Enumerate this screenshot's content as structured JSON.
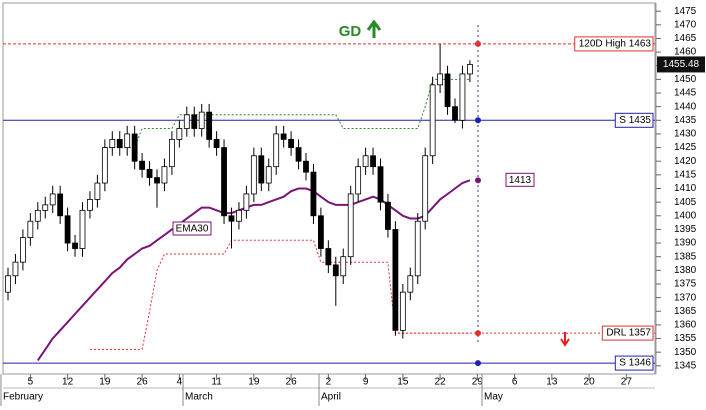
{
  "chart_data": {
    "type": "candlestick",
    "signal": "GD",
    "categories": [
      null,
      null,
      null,
      "5",
      null,
      null,
      null,
      null,
      "12",
      null,
      null,
      null,
      null,
      "19",
      null,
      null,
      null,
      null,
      "26",
      null,
      null,
      null,
      null,
      "4",
      null,
      null,
      null,
      null,
      "11",
      null,
      null,
      null,
      null,
      "19",
      null,
      null,
      null,
      null,
      "26",
      null,
      null,
      null,
      null,
      "2",
      null,
      null,
      null,
      null,
      "9",
      null,
      null,
      null,
      null,
      "15",
      null,
      null,
      null,
      null,
      "22",
      null,
      null,
      null,
      null,
      "29",
      null,
      null,
      null,
      null,
      "6",
      null,
      null,
      null,
      null,
      "13",
      null,
      null,
      null,
      null,
      "20",
      null,
      null,
      null,
      null,
      "27",
      null,
      null,
      null
    ],
    "months": [
      "February",
      "March",
      "April",
      "May"
    ],
    "open": [
      1372,
      1378,
      1383,
      1392,
      1398,
      1402,
      1404,
      1408,
      1400,
      1390,
      1388,
      1402,
      1406,
      1412,
      1425,
      1428,
      1425,
      1430,
      1420,
      1417,
      1414,
      1412,
      1418,
      1428,
      1432,
      1437,
      1432,
      1438,
      1428,
      1425,
      1400,
      1398,
      1402,
      1408,
      1422,
      1412,
      1418,
      1430,
      1428,
      1425,
      1420,
      1416,
      1400,
      1388,
      1382,
      1378,
      1385,
      1408,
      1418,
      1422,
      1418,
      1405,
      1395,
      1358,
      1372,
      1378,
      1398,
      1422,
      1448,
      1452,
      1440,
      1435,
      1452,
      null,
      null,
      null,
      null,
      null,
      null,
      null,
      null,
      null,
      null,
      null,
      null,
      null,
      null,
      null,
      null,
      null,
      null,
      null,
      null,
      null,
      null,
      null,
      null
    ],
    "high": [
      1381,
      1386,
      1395,
      1401,
      1405,
      1407,
      1411,
      1411,
      1403,
      1393,
      1405,
      1409,
      1415,
      1428,
      1431,
      1431,
      1433,
      1433,
      1423,
      1420,
      1417,
      1421,
      1431,
      1435,
      1440,
      1440,
      1441,
      1441,
      1431,
      1428,
      1403,
      1405,
      1411,
      1425,
      1425,
      1421,
      1433,
      1433,
      1431,
      1428,
      1423,
      1419,
      1403,
      1391,
      1385,
      1388,
      1411,
      1421,
      1425,
      1425,
      1421,
      1408,
      1398,
      1375,
      1381,
      1401,
      1425,
      1451,
      1463,
      1455,
      1443,
      1455,
      1457,
      null,
      null,
      null,
      null,
      null,
      null,
      null,
      null,
      null,
      null,
      null,
      null,
      null,
      null,
      null,
      null,
      null,
      null,
      null,
      null,
      null,
      null,
      null,
      null
    ],
    "low": [
      1369,
      1375,
      1380,
      1389,
      1395,
      1399,
      1401,
      1397,
      1387,
      1385,
      1385,
      1399,
      1403,
      1409,
      1422,
      1422,
      1422,
      1417,
      1414,
      1411,
      1403,
      1409,
      1415,
      1425,
      1429,
      1429,
      1429,
      1425,
      1422,
      1397,
      1388,
      1395,
      1399,
      1405,
      1409,
      1409,
      1415,
      1425,
      1422,
      1417,
      1413,
      1397,
      1385,
      1379,
      1367,
      1375,
      1382,
      1405,
      1415,
      1415,
      1402,
      1392,
      1356,
      1355,
      1369,
      1375,
      1395,
      1419,
      1445,
      1437,
      1434,
      1432,
      1449,
      null,
      null,
      null,
      null,
      null,
      null,
      null,
      null,
      null,
      null,
      null,
      null,
      null,
      null,
      null,
      null,
      null,
      null,
      null,
      null,
      null,
      null,
      null,
      null
    ],
    "close": [
      1378,
      1383,
      1392,
      1398,
      1402,
      1404,
      1408,
      1400,
      1390,
      1388,
      1402,
      1406,
      1412,
      1425,
      1428,
      1425,
      1430,
      1420,
      1417,
      1414,
      1412,
      1418,
      1428,
      1432,
      1437,
      1432,
      1438,
      1428,
      1425,
      1400,
      1398,
      1402,
      1408,
      1422,
      1412,
      1418,
      1430,
      1428,
      1425,
      1420,
      1416,
      1400,
      1388,
      1382,
      1378,
      1385,
      1408,
      1418,
      1422,
      1418,
      1405,
      1395,
      1358,
      1372,
      1378,
      1398,
      1422,
      1448,
      1452,
      1440,
      1435,
      1452,
      1455.48,
      null,
      null,
      null,
      null,
      null,
      null,
      null,
      null,
      null,
      null,
      null,
      null,
      null,
      null,
      null,
      null,
      null,
      null,
      null,
      null,
      null,
      null,
      null,
      null
    ],
    "last_price": 1455.48,
    "series": [
      {
        "name": "EMA30",
        "color": "#7a1478",
        "style": "solid",
        "end_label": "1413",
        "values": [
          null,
          null,
          null,
          null,
          1347,
          1351,
          1355,
          1358,
          1361,
          1364,
          1367,
          1370,
          1373,
          1376,
          1379,
          1381,
          1384,
          1386,
          1388,
          1389,
          1391,
          1393,
          1395,
          1397,
          1399,
          1401,
          1403,
          1403,
          1402,
          1401,
          1401,
          1402,
          1403,
          1404,
          1404,
          1405,
          1406,
          1407,
          1409,
          1410,
          1410,
          1409,
          1407,
          1405,
          1404,
          1404,
          1404,
          1405,
          1406,
          1407,
          1406,
          1404,
          1402,
          1400,
          1399,
          1399,
          1400,
          1403,
          1406,
          1408,
          1410,
          1412,
          1413,
          null,
          null,
          null,
          null,
          null,
          null,
          null,
          null,
          null,
          null,
          null,
          null,
          null,
          null,
          null,
          null,
          null,
          null,
          null,
          null,
          null,
          null,
          null,
          null
        ]
      },
      {
        "color": "#e03030",
        "style": "dotted",
        "values": [
          null,
          null,
          null,
          null,
          null,
          null,
          null,
          null,
          null,
          null,
          null,
          1351,
          1351,
          1351,
          1351,
          1351,
          1351,
          1351,
          1351,
          1365,
          1380,
          1386,
          1386,
          1386,
          1386,
          1386,
          1386,
          1386,
          1386,
          1386,
          1391,
          1391,
          1391,
          1391,
          1391,
          1391,
          1391,
          1391,
          1391,
          1391,
          1391,
          1391,
          1383,
          1383,
          1383,
          1383,
          1383,
          1383,
          1383,
          1383,
          1383,
          1383,
          1357,
          1357,
          1357,
          1357,
          1357,
          1357,
          1357,
          1357,
          1357,
          1357,
          1357,
          null,
          null,
          null,
          null,
          null,
          null,
          null,
          null,
          null,
          null,
          null,
          null,
          null,
          null,
          null,
          null,
          null,
          null,
          null,
          null,
          null,
          null,
          null,
          null
        ]
      },
      {
        "color": "#2a8a2a",
        "style": "dotted",
        "values": [
          null,
          null,
          null,
          null,
          null,
          null,
          null,
          null,
          null,
          null,
          null,
          null,
          null,
          1425,
          1425,
          1425,
          1425,
          1425,
          1432,
          1432,
          1432,
          1432,
          1432,
          1437,
          1437,
          1437,
          1437,
          1437,
          1437,
          1437,
          1437,
          1437,
          1437,
          1437,
          1437,
          1437,
          1437,
          1437,
          1437,
          1437,
          1437,
          1437,
          1437,
          1437,
          1437,
          1432,
          1432,
          1432,
          1432,
          1432,
          1432,
          1432,
          1432,
          1432,
          1432,
          1432,
          1440,
          1450,
          1450,
          1450,
          1450,
          1450,
          1450,
          null,
          null,
          null,
          null,
          null,
          null,
          null,
          null,
          null,
          null,
          null,
          null,
          null,
          null,
          null,
          null,
          null,
          null,
          null,
          null,
          null,
          null,
          null,
          null
        ]
      }
    ],
    "levels": [
      {
        "label": "120D High 1463",
        "value": 1463,
        "color": "#e03030",
        "style": "dashed"
      },
      {
        "label": "S 1435",
        "value": 1435,
        "color": "#2020b0",
        "style": "solid"
      },
      {
        "label": "DRL 1357",
        "value": 1357,
        "color": "#e03030",
        "style": "dotted"
      },
      {
        "label": "S 1346",
        "value": 1346,
        "color": "#2020b0",
        "style": "solid"
      }
    ],
    "ylim": [
      1342,
      1478
    ],
    "yticks": [
      1345,
      1350,
      1355,
      1360,
      1365,
      1370,
      1375,
      1380,
      1385,
      1390,
      1395,
      1400,
      1405,
      1410,
      1415,
      1420,
      1425,
      1430,
      1435,
      1440,
      1445,
      1450,
      1455,
      1460,
      1465,
      1470,
      1475
    ]
  }
}
